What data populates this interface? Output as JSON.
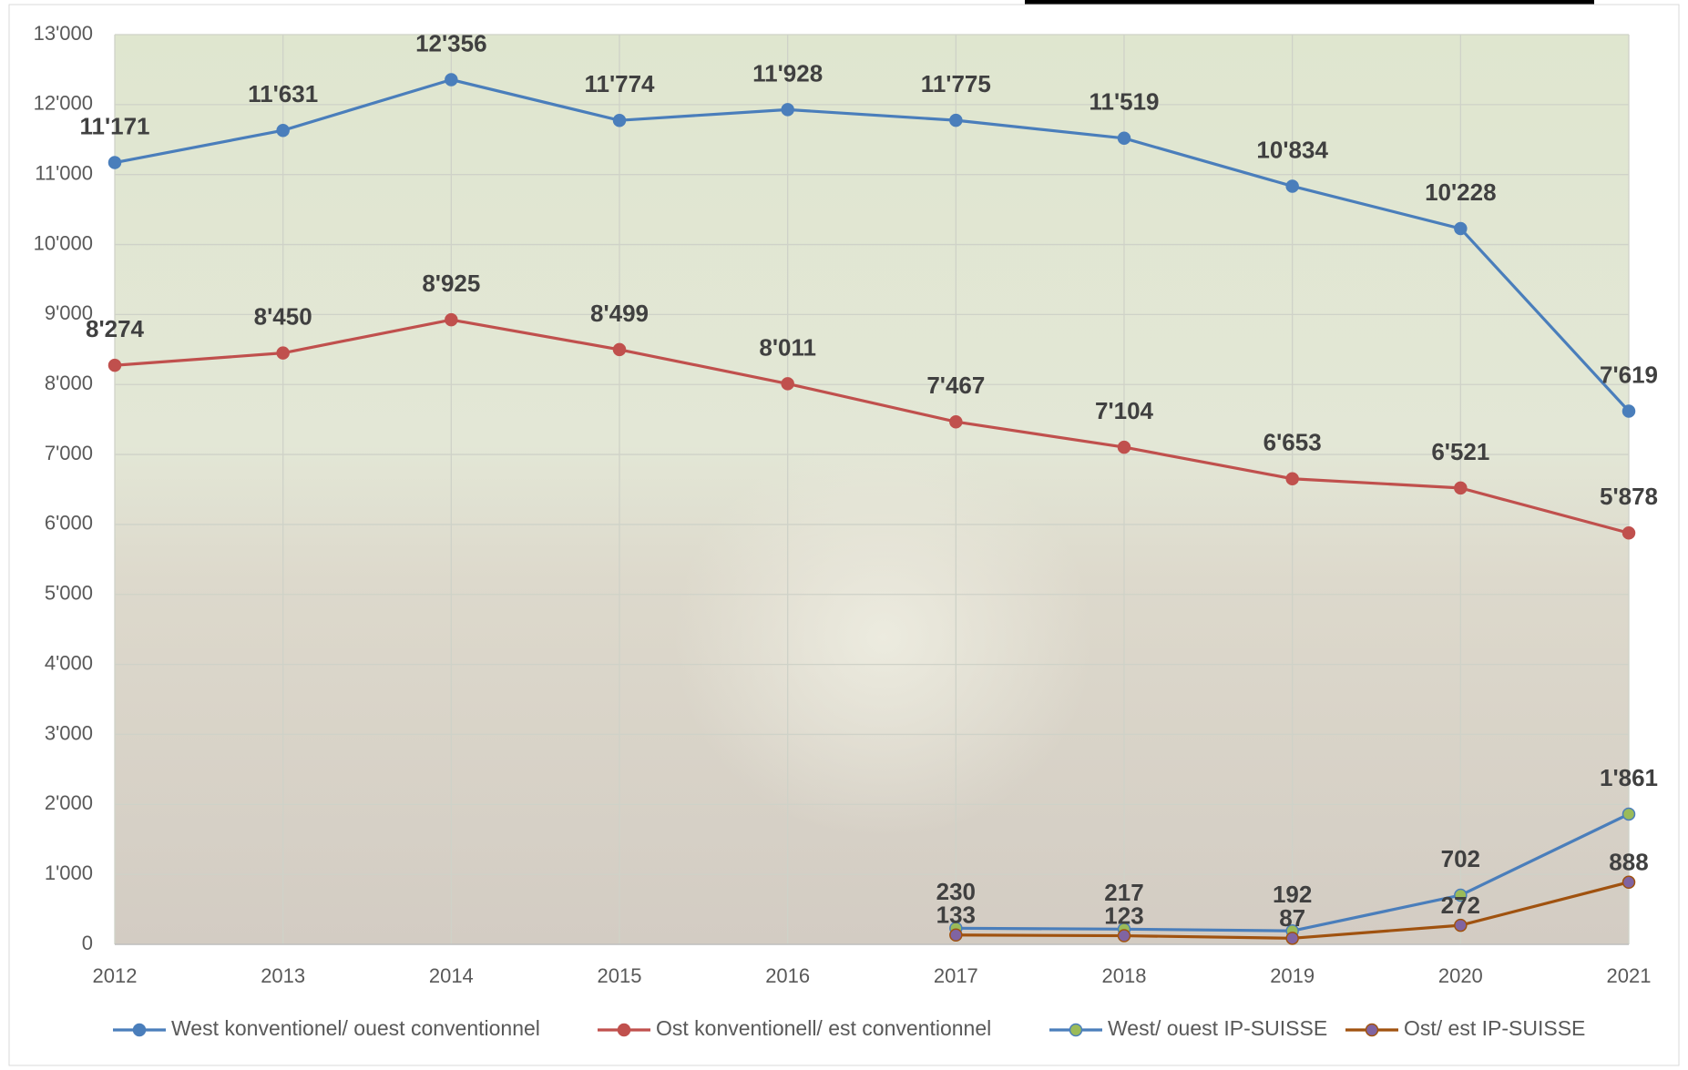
{
  "chart_data": {
    "type": "line",
    "categories": [
      "2012",
      "2013",
      "2014",
      "2015",
      "2016",
      "2017",
      "2018",
      "2019",
      "2020",
      "2021"
    ],
    "series": [
      {
        "name": "West konventionel/ ouest conventionnel",
        "color": "#4a7ebb",
        "marker_color": "#4a7ebb",
        "values": [
          11171,
          11631,
          12356,
          11774,
          11928,
          11775,
          11519,
          10834,
          10228,
          7619
        ],
        "value_labels": [
          "11'171",
          "11'631",
          "12'356",
          "11'774",
          "11'928",
          "11'775",
          "11'519",
          "10'834",
          "10'228",
          "7'619"
        ]
      },
      {
        "name": "Ost konventionell/ est conventionnel",
        "color": "#c0504d",
        "marker_color": "#c0504d",
        "values": [
          8274,
          8450,
          8925,
          8499,
          8011,
          7467,
          7104,
          6653,
          6521,
          5878
        ],
        "value_labels": [
          "8'274",
          "8'450",
          "8'925",
          "8'499",
          "8'011",
          "7'467",
          "7'104",
          "6'653",
          "6'521",
          "5'878"
        ]
      },
      {
        "name": "West/ ouest IP-SUISSE",
        "color": "#4a7ebb",
        "marker_color": "#9bbb59",
        "values": [
          null,
          null,
          null,
          null,
          null,
          230,
          217,
          192,
          702,
          1861
        ],
        "value_labels": [
          null,
          null,
          null,
          null,
          null,
          "230",
          "217",
          "192",
          "702",
          "1'861"
        ]
      },
      {
        "name": "Ost/ est IP-SUISSE",
        "color": "#a0520f",
        "marker_color": "#8064a2",
        "values": [
          null,
          null,
          null,
          null,
          null,
          133,
          123,
          87,
          272,
          888
        ],
        "value_labels": [
          null,
          null,
          null,
          null,
          null,
          "133",
          "123",
          "87",
          "272",
          "888"
        ]
      }
    ],
    "ylim": [
      0,
      13000
    ],
    "yticks": [
      0,
      {
        "value": 1000,
        "label": "1'000"
      },
      {
        "value": 2000,
        "label": "2'000"
      },
      {
        "value": 3000,
        "label": "3'000"
      },
      {
        "value": 4000,
        "label": "4'000"
      },
      {
        "value": 5000,
        "label": "5'000"
      },
      {
        "value": 6000,
        "label": "6'000"
      },
      {
        "value": 7000,
        "label": "7'000"
      },
      {
        "value": 8000,
        "label": "8'000"
      },
      {
        "value": 9000,
        "label": "9'000"
      },
      {
        "value": 10000,
        "label": "10'000"
      },
      {
        "value": 11000,
        "label": "11'000"
      },
      {
        "value": 12000,
        "label": "12'000"
      },
      {
        "value": 13000,
        "label": "13'000"
      }
    ],
    "grid": true,
    "legend": "bottom"
  }
}
